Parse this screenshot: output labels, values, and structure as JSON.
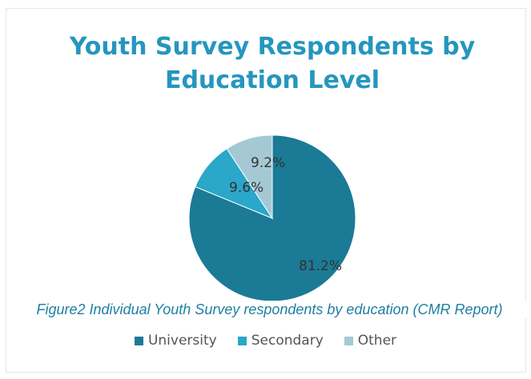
{
  "chart_data": {
    "type": "pie",
    "title": "Youth Survey Respondents by Education Level",
    "slices": [
      {
        "name": "University",
        "value": 81.2,
        "label": "81.2%",
        "color": "#1b7a96"
      },
      {
        "name": "Secondary",
        "value": 9.6,
        "label": "9.6%",
        "color": "#2aa7c9"
      },
      {
        "name": "Other",
        "value": 9.2,
        "label": "9.2%",
        "color": "#a4c9d5"
      }
    ],
    "legend_position": "bottom"
  },
  "caption": "Figure2 Individual Youth Survey respondents by education (CMR Report)"
}
